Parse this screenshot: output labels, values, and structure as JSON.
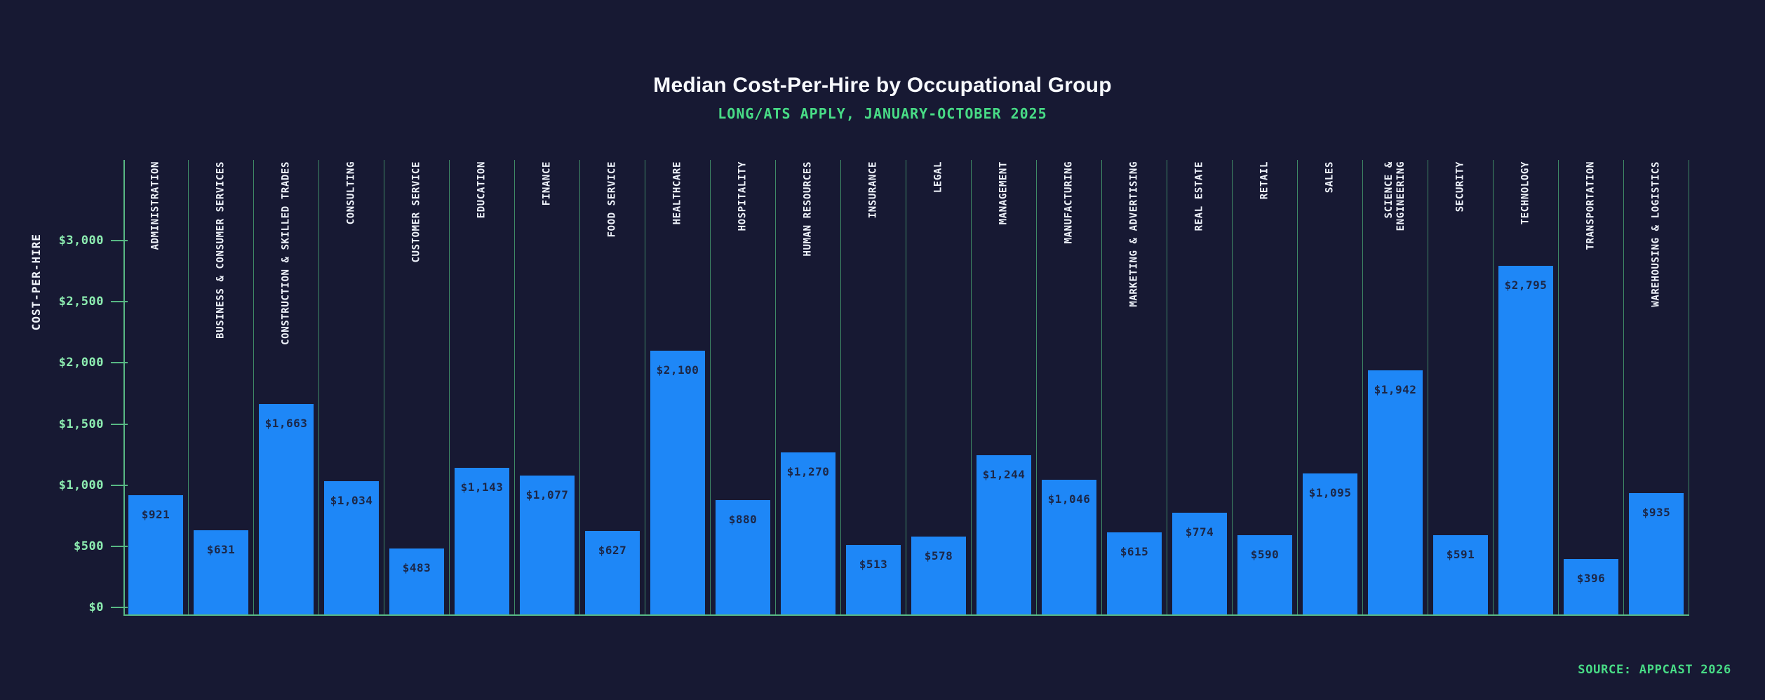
{
  "theme": {
    "bg": "#171933",
    "bar": "#1e87f7",
    "barValue": "#1c2747",
    "axisLine": "#58b884",
    "gridLine": "#3f8a66",
    "tickText": "#8dedb1",
    "accentGreen": "#48dc86",
    "titleText": "#f7f9fd",
    "labelText": "#eef2fa"
  },
  "chart_data": {
    "type": "bar",
    "title": "Median Cost-Per-Hire by Occupational Group",
    "subtitle": "LONG/ATS APPLY, JANUARY-OCTOBER 2025",
    "ylabel": "COST-PER-HIRE",
    "xlabel": "",
    "categories": [
      "ADMINISTRATION",
      "BUSINESS & CONSUMER SERVICES",
      "CONSTRUCTION & SKILLED TRADES",
      "CONSULTING",
      "CUSTOMER SERVICE",
      "EDUCATION",
      "FINANCE",
      "FOOD SERVICE",
      "HEALTHCARE",
      "HOSPITALITY",
      "HUMAN RESOURCES",
      "INSURANCE",
      "LEGAL",
      "MANAGEMENT",
      "MANUFACTURING",
      "MARKETING & ADVERTISING",
      "REAL ESTATE",
      "RETAIL",
      "SALES",
      "SCIENCE &\nENGINEERING",
      "SECURITY",
      "TECHNOLOGY",
      "TRANSPORTATION",
      "WAREHOUSING & LOGISTICS"
    ],
    "values": [
      921,
      631,
      1663,
      1034,
      483,
      1143,
      1077,
      627,
      2100,
      880,
      1270,
      513,
      578,
      1244,
      1046,
      615,
      774,
      590,
      1095,
      1942,
      591,
      2795,
      396,
      935
    ],
    "value_labels": [
      "$921",
      "$631",
      "$1,663",
      "$1,034",
      "$483",
      "$1,143",
      "$1,077",
      "$627",
      "$2,100",
      "$880",
      "$1,270",
      "$513",
      "$578",
      "$1,244",
      "$1,046",
      "$615",
      "$774",
      "$590",
      "$1,095",
      "$1,942",
      "$591",
      "$2,795",
      "$396",
      "$935"
    ],
    "yticks": {
      "labels": [
        "$0",
        "$500",
        "$1,000",
        "$1,500",
        "$2,000",
        "$2,500",
        "$3,000"
      ],
      "values": [
        0,
        500,
        1000,
        1500,
        2000,
        2500,
        3000
      ]
    },
    "ylim": [
      0,
      3700
    ],
    "grid": "vertical category separators only",
    "legend": false,
    "category_label_orientation": "rotated-90-reading-bottom-to-top",
    "value_label_position": "inside-bar-top"
  },
  "footer": {
    "source": "SOURCE: APPCAST 2026"
  }
}
